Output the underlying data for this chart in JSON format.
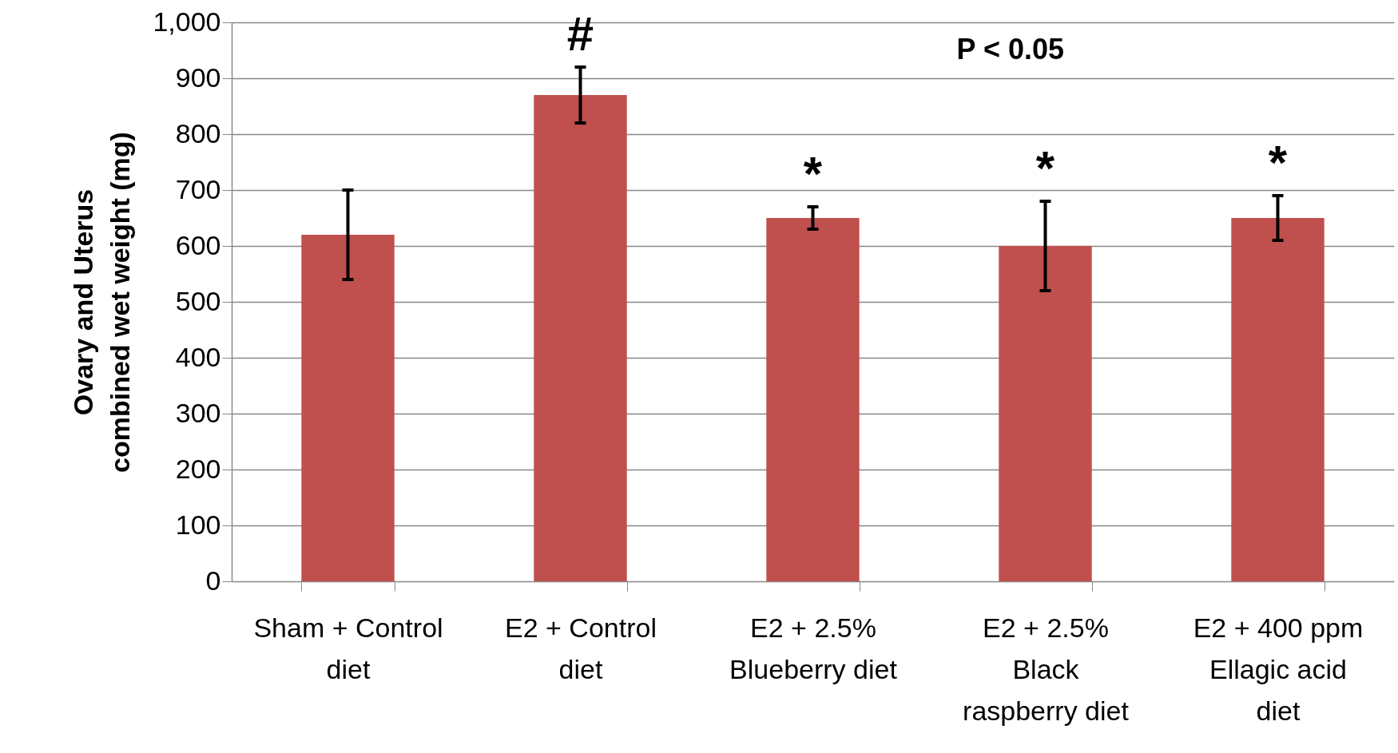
{
  "chart_data": {
    "type": "bar",
    "ylabel": "Ovary and Uterus combined wet weight (mg)",
    "categories": [
      "Sham + Control diet",
      "E2 + Control diet",
      "E2 + 2.5% Blueberry diet",
      "E2 + 2.5% Black raspberry diet",
      "E2 + 400 ppm Ellagic acid diet"
    ],
    "values": [
      620,
      870,
      650,
      600,
      650
    ],
    "errors": [
      [
        540,
        700
      ],
      [
        820,
        920
      ],
      [
        630,
        670
      ],
      [
        520,
        680
      ],
      [
        610,
        690
      ]
    ],
    "color": "#c0504d",
    "ylim": [
      0,
      1000
    ],
    "yticks": [
      0,
      100,
      200,
      300,
      400,
      500,
      600,
      700,
      800,
      900,
      {
        "value": 1000,
        "label": "1,000"
      }
    ],
    "grid": "y",
    "annotations": [
      "#",
      "*",
      "*",
      "*",
      "P < 0.05"
    ]
  }
}
